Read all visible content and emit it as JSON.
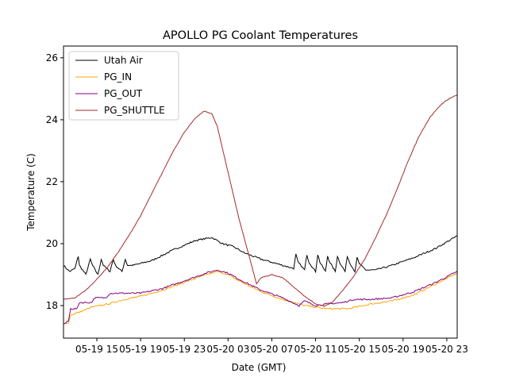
{
  "chart_data": {
    "type": "line",
    "title": "APOLLO PG Coolant Temperatures",
    "xlabel": "Date (GMT)",
    "ylabel": "Temperature (C)",
    "x_units": "hours since 05-19 00:00 GMT",
    "xlim": [
      11.95,
      47.95
    ],
    "ylim": [
      16.95,
      26.38
    ],
    "grid": false,
    "legend_position": "top-left",
    "x_ticks": [
      {
        "value": 15,
        "label": "05-19 15"
      },
      {
        "value": 19,
        "label": "05-19 19"
      },
      {
        "value": 23,
        "label": "05-19 23"
      },
      {
        "value": 27,
        "label": "05-20 03"
      },
      {
        "value": 31,
        "label": "05-20 07"
      },
      {
        "value": 35,
        "label": "05-20 11"
      },
      {
        "value": 39,
        "label": "05-20 15"
      },
      {
        "value": 43,
        "label": "05-20 19"
      },
      {
        "value": 47,
        "label": "05-20 23"
      }
    ],
    "y_ticks": [
      {
        "value": 18,
        "label": "18"
      },
      {
        "value": 20,
        "label": "20"
      },
      {
        "value": 22,
        "label": "22"
      },
      {
        "value": 24,
        "label": "24"
      },
      {
        "value": 26,
        "label": "26"
      }
    ],
    "series": [
      {
        "name": "Utah Air",
        "color": "#000000",
        "points": [
          [
            11.95,
            19.3
          ],
          [
            12.5,
            19.1
          ],
          [
            13.0,
            19.2
          ],
          [
            13.3,
            19.6
          ],
          [
            13.4,
            19.3
          ],
          [
            14.0,
            19.0
          ],
          [
            14.4,
            19.5
          ],
          [
            14.6,
            19.3
          ],
          [
            15.1,
            19.0
          ],
          [
            15.4,
            19.5
          ],
          [
            15.6,
            19.3
          ],
          [
            16.2,
            19.1
          ],
          [
            16.5,
            19.5
          ],
          [
            16.7,
            19.3
          ],
          [
            17.3,
            19.1
          ],
          [
            17.6,
            19.5
          ],
          [
            17.8,
            19.3
          ],
          [
            18.3,
            19.3
          ],
          [
            20.0,
            19.45
          ],
          [
            22.0,
            19.8
          ],
          [
            24.0,
            20.1
          ],
          [
            25.5,
            20.2
          ],
          [
            26.5,
            20.0
          ],
          [
            27.5,
            19.9
          ],
          [
            28.5,
            19.7
          ],
          [
            30.0,
            19.5
          ],
          [
            32.0,
            19.3
          ],
          [
            33.0,
            19.2
          ],
          [
            33.2,
            19.65
          ],
          [
            33.4,
            19.4
          ],
          [
            34.0,
            19.15
          ],
          [
            34.2,
            19.65
          ],
          [
            34.4,
            19.4
          ],
          [
            35.0,
            19.1
          ],
          [
            35.2,
            19.65
          ],
          [
            35.4,
            19.4
          ],
          [
            35.9,
            19.1
          ],
          [
            36.1,
            19.6
          ],
          [
            36.3,
            19.4
          ],
          [
            36.8,
            19.1
          ],
          [
            37.0,
            19.6
          ],
          [
            37.2,
            19.4
          ],
          [
            37.7,
            19.1
          ],
          [
            37.9,
            19.6
          ],
          [
            38.1,
            19.4
          ],
          [
            38.6,
            19.1
          ],
          [
            38.8,
            19.55
          ],
          [
            39.0,
            19.35
          ],
          [
            39.6,
            19.15
          ],
          [
            40.5,
            19.15
          ],
          [
            42.0,
            19.3
          ],
          [
            44.0,
            19.55
          ],
          [
            46.0,
            19.85
          ],
          [
            47.95,
            20.25
          ]
        ]
      },
      {
        "name": "PG_IN",
        "color": "#ffa500",
        "points": [
          [
            11.95,
            17.4
          ],
          [
            12.4,
            17.45
          ],
          [
            12.6,
            17.7
          ],
          [
            13.5,
            17.8
          ],
          [
            14.5,
            17.95
          ],
          [
            16.0,
            18.05
          ],
          [
            17.5,
            18.2
          ],
          [
            19.0,
            18.3
          ],
          [
            21.0,
            18.5
          ],
          [
            23.0,
            18.75
          ],
          [
            25.0,
            19.0
          ],
          [
            26.0,
            19.1
          ],
          [
            27.0,
            19.0
          ],
          [
            28.0,
            18.8
          ],
          [
            30.0,
            18.45
          ],
          [
            32.0,
            18.2
          ],
          [
            34.0,
            18.0
          ],
          [
            36.0,
            17.9
          ],
          [
            38.0,
            17.9
          ],
          [
            40.0,
            18.05
          ],
          [
            42.0,
            18.15
          ],
          [
            44.0,
            18.35
          ],
          [
            46.0,
            18.7
          ],
          [
            47.95,
            19.05
          ]
        ]
      },
      {
        "name": "PG_OUT",
        "color": "#800080",
        "points": [
          [
            11.95,
            17.4
          ],
          [
            12.4,
            17.5
          ],
          [
            12.6,
            17.9
          ],
          [
            13.2,
            17.9
          ],
          [
            13.4,
            18.1
          ],
          [
            14.5,
            18.1
          ],
          [
            14.8,
            18.25
          ],
          [
            15.8,
            18.25
          ],
          [
            16.2,
            18.4
          ],
          [
            18.0,
            18.4
          ],
          [
            19.0,
            18.4
          ],
          [
            21.0,
            18.55
          ],
          [
            23.0,
            18.8
          ],
          [
            25.0,
            19.05
          ],
          [
            26.0,
            19.15
          ],
          [
            27.0,
            19.05
          ],
          [
            28.0,
            18.85
          ],
          [
            30.0,
            18.5
          ],
          [
            32.0,
            18.25
          ],
          [
            33.5,
            18.0
          ],
          [
            34.0,
            18.15
          ],
          [
            35.0,
            18.0
          ],
          [
            36.0,
            18.05
          ],
          [
            37.5,
            18.1
          ],
          [
            38.5,
            18.2
          ],
          [
            40.0,
            18.2
          ],
          [
            42.0,
            18.25
          ],
          [
            44.0,
            18.45
          ],
          [
            46.0,
            18.75
          ],
          [
            47.95,
            19.1
          ]
        ]
      },
      {
        "name": "PG_SHUTTLE",
        "color": "#a52a2a",
        "points": [
          [
            11.95,
            18.2
          ],
          [
            13.0,
            18.25
          ],
          [
            14.0,
            18.5
          ],
          [
            15.0,
            18.85
          ],
          [
            16.0,
            19.25
          ],
          [
            17.0,
            19.75
          ],
          [
            18.0,
            20.3
          ],
          [
            19.0,
            20.9
          ],
          [
            20.0,
            21.6
          ],
          [
            21.0,
            22.3
          ],
          [
            22.0,
            23.0
          ],
          [
            23.0,
            23.6
          ],
          [
            24.0,
            24.05
          ],
          [
            24.8,
            24.28
          ],
          [
            25.5,
            24.2
          ],
          [
            26.0,
            23.8
          ],
          [
            27.0,
            22.3
          ],
          [
            28.0,
            20.8
          ],
          [
            29.0,
            19.5
          ],
          [
            29.6,
            18.7
          ],
          [
            30.0,
            18.9
          ],
          [
            31.0,
            19.0
          ],
          [
            32.0,
            18.9
          ],
          [
            33.0,
            18.6
          ],
          [
            34.0,
            18.3
          ],
          [
            35.0,
            18.05
          ],
          [
            35.8,
            17.98
          ],
          [
            36.5,
            18.1
          ],
          [
            37.5,
            18.5
          ],
          [
            38.5,
            18.95
          ],
          [
            39.5,
            19.5
          ],
          [
            40.5,
            20.2
          ],
          [
            41.5,
            20.95
          ],
          [
            42.5,
            21.8
          ],
          [
            43.5,
            22.7
          ],
          [
            44.5,
            23.5
          ],
          [
            45.5,
            24.1
          ],
          [
            46.5,
            24.5
          ],
          [
            47.3,
            24.7
          ],
          [
            47.95,
            24.8
          ]
        ]
      }
    ]
  }
}
